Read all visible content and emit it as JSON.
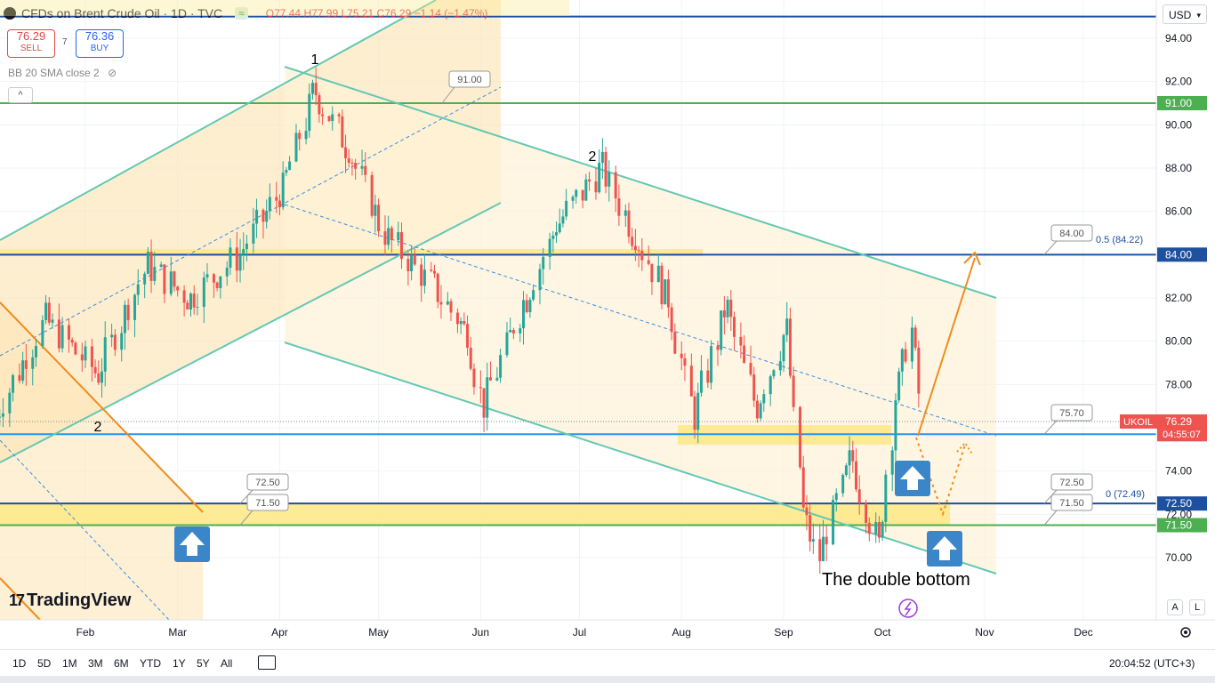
{
  "header": {
    "symbol": "CFDs on Brent Crude Oil · 1D · TVC",
    "ohlc": {
      "o": "O77.44",
      "h": "H77.99",
      "l": "L75.21",
      "c": "C76.29",
      "chg": "−1.14 (−1.47%)"
    },
    "badge": "≈"
  },
  "trade": {
    "sell_price": "76.29",
    "sell_label": "SELL",
    "buy_price": "76.36",
    "buy_label": "BUY",
    "spread": "7"
  },
  "indicator": "BB 20 SMA close 2",
  "currency": "USD",
  "ticker_label": "UKOIL",
  "last_price": "76.29",
  "countdown": "04:55:07",
  "brand": "TradingView",
  "annotation_text": "The double bottom",
  "timeframes": [
    "1D",
    "5D",
    "1M",
    "3M",
    "6M",
    "YTD",
    "1Y",
    "5Y",
    "All"
  ],
  "clock": "20:04:52 (UTC+3)",
  "corner_buttons": {
    "auto": "A",
    "log": "L"
  },
  "colors": {
    "up": "#26a69a",
    "down": "#ef5350",
    "channel": "#64c8b4",
    "level_green": "#4caf50",
    "level_blue": "#1e50a0",
    "fill_yellow": "#fde98a",
    "accent_orange": "#f08c1e",
    "arrow_blue": "#3a86c8"
  },
  "chart_data": {
    "type": "candlestick",
    "title": "CFDs on Brent Crude Oil · 1D · TVC",
    "ylim": [
      68,
      96
    ],
    "y_ticks": [
      70,
      72,
      74,
      76,
      78,
      80,
      82,
      84,
      86,
      88,
      90,
      92,
      94
    ],
    "y_tick_labels": [
      "70.00",
      "72.00",
      "74.00",
      "76.00",
      "78.00",
      "80.00",
      "82.00",
      "84.00",
      "86.00",
      "88.00",
      "90.00",
      "92.00",
      "94.00"
    ],
    "x_tick_labels": [
      "Feb",
      "Mar",
      "Apr",
      "May",
      "Jun",
      "Jul",
      "Aug",
      "Sep",
      "Oct",
      "Nov",
      "Dec"
    ],
    "path_points": [
      {
        "date": "2023-01-05",
        "price": 76.5
      },
      {
        "date": "2023-01-20",
        "price": 81.0
      },
      {
        "date": "2023-02-05",
        "price": 78.5
      },
      {
        "date": "2023-02-20",
        "price": 83.5
      },
      {
        "date": "2023-03-05",
        "price": 82.0
      },
      {
        "date": "2023-03-20",
        "price": 84.0
      },
      {
        "date": "2023-04-02",
        "price": 87.0
      },
      {
        "date": "2023-04-12",
        "price": 91.5
      },
      {
        "date": "2023-04-22",
        "price": 89.0
      },
      {
        "date": "2023-05-03",
        "price": 85.0
      },
      {
        "date": "2023-05-18",
        "price": 82.5
      },
      {
        "date": "2023-05-28",
        "price": 80.5
      },
      {
        "date": "2023-06-02",
        "price": 77.0
      },
      {
        "date": "2023-06-15",
        "price": 82.0
      },
      {
        "date": "2023-06-25",
        "price": 85.5
      },
      {
        "date": "2023-07-08",
        "price": 88.0
      },
      {
        "date": "2023-07-18",
        "price": 85.0
      },
      {
        "date": "2023-07-28",
        "price": 82.0
      },
      {
        "date": "2023-08-05",
        "price": 76.5
      },
      {
        "date": "2023-08-15",
        "price": 81.5
      },
      {
        "date": "2023-08-24",
        "price": 77.0
      },
      {
        "date": "2023-09-02",
        "price": 80.5
      },
      {
        "date": "2023-09-08",
        "price": 71.5
      },
      {
        "date": "2023-09-12",
        "price": 70.0
      },
      {
        "date": "2023-09-22",
        "price": 74.5
      },
      {
        "date": "2023-09-30",
        "price": 70.5
      },
      {
        "date": "2023-10-06",
        "price": 78.0
      },
      {
        "date": "2023-10-10",
        "price": 80.5
      },
      {
        "date": "2023-10-14",
        "price": 76.3
      }
    ],
    "levels": [
      {
        "price": 95.0,
        "label": "",
        "color": "#1e50a0"
      },
      {
        "price": 91.0,
        "label": "91.00",
        "color": "#4caf50"
      },
      {
        "price": 84.0,
        "label": "84.00",
        "color": "#1e50a0"
      },
      {
        "price": 75.7,
        "label": "75.70",
        "color": "#2196f3"
      },
      {
        "price": 72.5,
        "label": "72.50",
        "color": "#1e50a0"
      },
      {
        "price": 71.5,
        "label": "71.50",
        "color": "#4caf50"
      }
    ],
    "fib_labels": [
      "0.5 (84.22)",
      "0 (72.49)"
    ],
    "callouts": [
      "91.00",
      "84.00",
      "75.70",
      "72.50",
      "71.50",
      "72.50",
      "71.50"
    ],
    "wave_labels": [
      "1",
      "2",
      "2"
    ],
    "current_price": 76.29
  }
}
